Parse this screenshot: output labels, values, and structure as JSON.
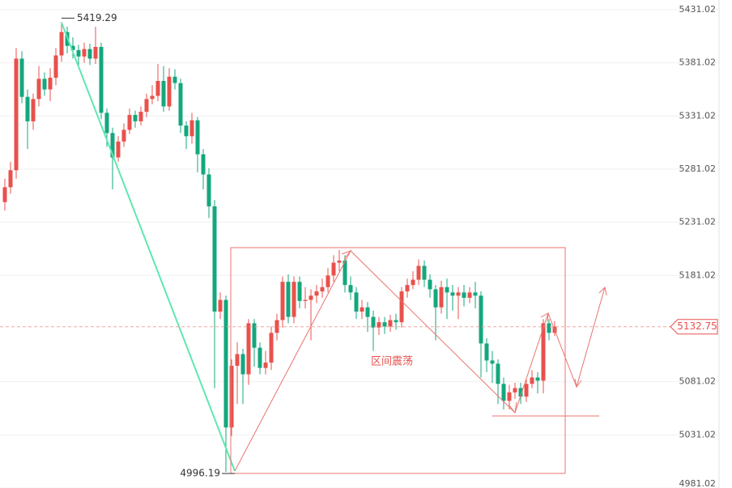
{
  "chart_data": {
    "type": "candlestick",
    "open": [
      5250,
      5264,
      5280,
      5385,
      5349,
      5326,
      5347,
      5366,
      5356,
      5367,
      5388,
      5410,
      5397,
      5393,
      5387,
      5394,
      5385,
      5396,
      5334,
      5315,
      5292,
      5307,
      5318,
      5332,
      5326,
      5335,
      5347,
      5350,
      5364,
      5340,
      5368,
      5362,
      5322,
      5312,
      5327,
      5295,
      5276,
      5246,
      5147,
      5158,
      5038,
      5096,
      5107,
      5088,
      5136,
      5113,
      5094,
      5099,
      5127,
      5139,
      5175,
      5142,
      5175,
      5157,
      5158,
      5162,
      5166,
      5170,
      5181,
      5193,
      5195,
      5172,
      5165,
      5147,
      5151,
      5142,
      5132,
      5137,
      5133,
      5139,
      5137,
      5166,
      5172,
      5177,
      5190,
      5177,
      5168,
      5151,
      5170,
      5165,
      5162,
      5165,
      5160,
      5165,
      5162,
      5117,
      5101,
      5098,
      5079,
      5063,
      5071,
      5075,
      5067,
      5079,
      5085,
      5082,
      5136,
      5127
    ],
    "high": [
      5272,
      5288,
      5395,
      5392,
      5356,
      5352,
      5378,
      5372,
      5376,
      5395,
      5419.29,
      5415,
      5405,
      5398,
      5400,
      5399,
      5415,
      5400,
      5338,
      5320,
      5312,
      5324,
      5338,
      5336,
      5340,
      5352,
      5360,
      5380,
      5378,
      5376,
      5375,
      5366,
      5326,
      5334,
      5330,
      5300,
      5282,
      5252,
      5165,
      5162,
      5102,
      5118,
      5112,
      5140,
      5140,
      5118,
      5110,
      5133,
      5145,
      5180,
      5182,
      5180,
      5180,
      5170,
      5168,
      5172,
      5178,
      5188,
      5200,
      5205,
      5200,
      5180,
      5170,
      5158,
      5156,
      5148,
      5142,
      5142,
      5144,
      5145,
      5170,
      5178,
      5185,
      5196,
      5195,
      5182,
      5172,
      5176,
      5178,
      5172,
      5170,
      5172,
      5170,
      5175,
      5166,
      5122,
      5110,
      5102,
      5085,
      5078,
      5080,
      5080,
      5084,
      5092,
      5090,
      5140,
      5140,
      5138
    ],
    "low": [
      5242,
      5258,
      5272,
      5343,
      5300,
      5318,
      5340,
      5350,
      5345,
      5360,
      5382,
      5390,
      5385,
      5378,
      5381,
      5379,
      5380,
      5328,
      5302,
      5262,
      5288,
      5302,
      5314,
      5320,
      5322,
      5330,
      5342,
      5345,
      5335,
      5336,
      5356,
      5315,
      5300,
      5305,
      5278,
      5262,
      5235,
      5075,
      5140,
      4996.19,
      5030,
      5060,
      5060,
      5078,
      5095,
      5088,
      5088,
      5092,
      5120,
      5132,
      5136,
      5136,
      5150,
      5150,
      5120,
      5155,
      5160,
      5165,
      5175,
      5185,
      5165,
      5158,
      5140,
      5140,
      5128,
      5110,
      5125,
      5126,
      5128,
      5130,
      5132,
      5160,
      5168,
      5172,
      5170,
      5160,
      5120,
      5145,
      5140,
      5148,
      5140,
      5152,
      5155,
      5150,
      5085,
      5090,
      5080,
      5060,
      5055,
      5055,
      5065,
      5060,
      5062,
      5075,
      5070,
      5070,
      5120,
      5124
    ],
    "close": [
      5264,
      5280,
      5385,
      5349,
      5326,
      5347,
      5366,
      5356,
      5367,
      5388,
      5410,
      5397,
      5393,
      5387,
      5394,
      5385,
      5396,
      5334,
      5315,
      5292,
      5307,
      5318,
      5332,
      5326,
      5335,
      5347,
      5350,
      5364,
      5340,
      5368,
      5362,
      5322,
      5312,
      5327,
      5295,
      5276,
      5246,
      5147,
      5158,
      5038,
      5096,
      5107,
      5088,
      5136,
      5113,
      5094,
      5099,
      5127,
      5139,
      5175,
      5142,
      5175,
      5157,
      5158,
      5162,
      5166,
      5170,
      5181,
      5193,
      5195,
      5172,
      5165,
      5147,
      5151,
      5142,
      5132,
      5137,
      5133,
      5139,
      5137,
      5166,
      5172,
      5177,
      5190,
      5177,
      5168,
      5151,
      5170,
      5165,
      5162,
      5165,
      5160,
      5165,
      5162,
      5117,
      5101,
      5098,
      5079,
      5063,
      5071,
      5075,
      5067,
      5079,
      5085,
      5082,
      5136,
      5127,
      5133
    ],
    "up_color": "#e8514c",
    "down_color": "#14a77d",
    "ylim": [
      4981.02,
      5440.15
    ],
    "yticks": [
      {
        "value": 5431.02,
        "label": "5431.02"
      },
      {
        "value": 5381.02,
        "label": "5381.02"
      },
      {
        "value": 5331.02,
        "label": "5331.02"
      },
      {
        "value": 5281.02,
        "label": "5281.02"
      },
      {
        "value": 5231.02,
        "label": "5231.02"
      },
      {
        "value": 5181.02,
        "label": "5181.02"
      },
      {
        "value": 5081.02,
        "label": "5081.02"
      },
      {
        "value": 5031.02,
        "label": "5031.02"
      },
      {
        "value": 4981.02,
        "label": "4981.02"
      }
    ],
    "grid": true,
    "high_label": 5419.29,
    "low_label": 4996.19,
    "last_price": 5132.75,
    "annotation": "区间震荡"
  }
}
